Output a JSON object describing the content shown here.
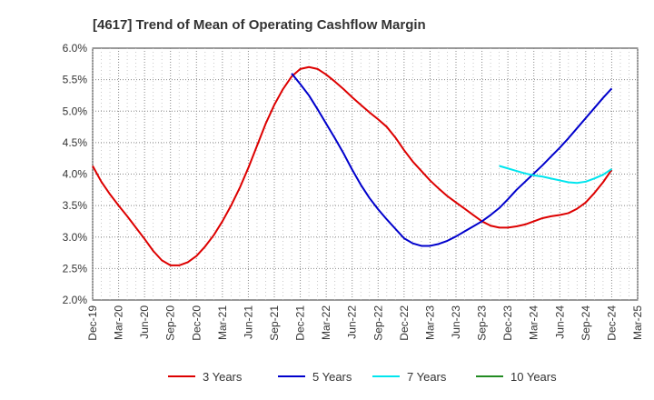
{
  "chart_data": {
    "type": "line",
    "title": "[4617]  Trend of Mean of Operating Cashflow Margin",
    "xlabel": "",
    "ylabel": "",
    "x_ticks": [
      "Dec-19",
      "Mar-20",
      "Jun-20",
      "Sep-20",
      "Dec-20",
      "Mar-21",
      "Jun-21",
      "Sep-21",
      "Dec-21",
      "Mar-22",
      "Jun-22",
      "Sep-22",
      "Dec-22",
      "Mar-23",
      "Jun-23",
      "Sep-23",
      "Dec-23",
      "Mar-24",
      "Jun-24",
      "Sep-24",
      "Dec-24",
      "Mar-25"
    ],
    "y_ticks": [
      "2.0%",
      "2.5%",
      "3.0%",
      "3.5%",
      "4.0%",
      "4.5%",
      "5.0%",
      "5.5%",
      "6.0%"
    ],
    "ylim": [
      2.0,
      6.0
    ],
    "grid": true,
    "legend_position": "bottom",
    "series": [
      {
        "name": "3 Years",
        "color": "#dd0000",
        "points": [
          [
            "Dec-19",
            4.13
          ],
          [
            "Jan-20",
            3.88
          ],
          [
            "Feb-20",
            3.68
          ],
          [
            "Mar-20",
            3.5
          ],
          [
            "Apr-20",
            3.33
          ],
          [
            "May-20",
            3.15
          ],
          [
            "Jun-20",
            2.97
          ],
          [
            "Jul-20",
            2.78
          ],
          [
            "Aug-20",
            2.63
          ],
          [
            "Sep-20",
            2.55
          ],
          [
            "Oct-20",
            2.55
          ],
          [
            "Nov-20",
            2.6
          ],
          [
            "Dec-20",
            2.7
          ],
          [
            "Jan-21",
            2.85
          ],
          [
            "Feb-21",
            3.03
          ],
          [
            "Mar-21",
            3.25
          ],
          [
            "Apr-21",
            3.5
          ],
          [
            "May-21",
            3.78
          ],
          [
            "Jun-21",
            4.1
          ],
          [
            "Jul-21",
            4.45
          ],
          [
            "Aug-21",
            4.8
          ],
          [
            "Sep-21",
            5.1
          ],
          [
            "Oct-21",
            5.35
          ],
          [
            "Nov-21",
            5.55
          ],
          [
            "Dec-21",
            5.67
          ],
          [
            "Jan-22",
            5.7
          ],
          [
            "Feb-22",
            5.67
          ],
          [
            "Mar-22",
            5.58
          ],
          [
            "Apr-22",
            5.47
          ],
          [
            "May-22",
            5.35
          ],
          [
            "Jun-22",
            5.22
          ],
          [
            "Jul-22",
            5.1
          ],
          [
            "Aug-22",
            4.98
          ],
          [
            "Sep-22",
            4.87
          ],
          [
            "Oct-22",
            4.75
          ],
          [
            "Nov-22",
            4.58
          ],
          [
            "Dec-22",
            4.38
          ],
          [
            "Jan-23",
            4.2
          ],
          [
            "Feb-23",
            4.05
          ],
          [
            "Mar-23",
            3.9
          ],
          [
            "Apr-23",
            3.77
          ],
          [
            "May-23",
            3.65
          ],
          [
            "Jun-23",
            3.55
          ],
          [
            "Jul-23",
            3.45
          ],
          [
            "Aug-23",
            3.35
          ],
          [
            "Sep-23",
            3.25
          ],
          [
            "Oct-23",
            3.18
          ],
          [
            "Nov-23",
            3.15
          ],
          [
            "Dec-23",
            3.15
          ],
          [
            "Jan-24",
            3.17
          ],
          [
            "Feb-24",
            3.2
          ],
          [
            "Mar-24",
            3.25
          ],
          [
            "Apr-24",
            3.3
          ],
          [
            "May-24",
            3.33
          ],
          [
            "Jun-24",
            3.35
          ],
          [
            "Jul-24",
            3.38
          ],
          [
            "Aug-24",
            3.45
          ],
          [
            "Sep-24",
            3.55
          ],
          [
            "Oct-24",
            3.7
          ],
          [
            "Nov-24",
            3.87
          ],
          [
            "Dec-24",
            4.07
          ]
        ]
      },
      {
        "name": "5 Years",
        "color": "#0000cc",
        "points": [
          [
            "Nov-21",
            5.6
          ],
          [
            "Dec-21",
            5.43
          ],
          [
            "Jan-22",
            5.25
          ],
          [
            "Feb-22",
            5.03
          ],
          [
            "Mar-22",
            4.8
          ],
          [
            "Apr-22",
            4.57
          ],
          [
            "May-22",
            4.33
          ],
          [
            "Jun-22",
            4.07
          ],
          [
            "Jul-22",
            3.83
          ],
          [
            "Aug-22",
            3.62
          ],
          [
            "Sep-22",
            3.44
          ],
          [
            "Oct-22",
            3.28
          ],
          [
            "Nov-22",
            3.13
          ],
          [
            "Dec-22",
            2.98
          ],
          [
            "Jan-23",
            2.9
          ],
          [
            "Feb-23",
            2.86
          ],
          [
            "Mar-23",
            2.86
          ],
          [
            "Apr-23",
            2.89
          ],
          [
            "May-23",
            2.94
          ],
          [
            "Jun-23",
            3.01
          ],
          [
            "Jul-23",
            3.09
          ],
          [
            "Aug-23",
            3.17
          ],
          [
            "Sep-23",
            3.25
          ],
          [
            "Oct-23",
            3.35
          ],
          [
            "Nov-23",
            3.46
          ],
          [
            "Dec-23",
            3.6
          ],
          [
            "Jan-24",
            3.75
          ],
          [
            "Feb-24",
            3.88
          ],
          [
            "Mar-24",
            4.01
          ],
          [
            "Apr-24",
            4.14
          ],
          [
            "May-24",
            4.28
          ],
          [
            "Jun-24",
            4.42
          ],
          [
            "Jul-24",
            4.57
          ],
          [
            "Aug-24",
            4.73
          ],
          [
            "Sep-24",
            4.89
          ],
          [
            "Oct-24",
            5.05
          ],
          [
            "Nov-24",
            5.21
          ],
          [
            "Dec-24",
            5.36
          ]
        ]
      },
      {
        "name": "7 Years",
        "color": "#00e5ee",
        "points": [
          [
            "Nov-23",
            4.13
          ],
          [
            "Dec-23",
            4.09
          ],
          [
            "Jan-24",
            4.05
          ],
          [
            "Feb-24",
            4.01
          ],
          [
            "Mar-24",
            3.98
          ],
          [
            "Apr-24",
            3.96
          ],
          [
            "May-24",
            3.93
          ],
          [
            "Jun-24",
            3.9
          ],
          [
            "Jul-24",
            3.87
          ],
          [
            "Aug-24",
            3.86
          ],
          [
            "Sep-24",
            3.88
          ],
          [
            "Oct-24",
            3.93
          ],
          [
            "Nov-24",
            3.99
          ],
          [
            "Dec-24",
            4.08
          ]
        ]
      },
      {
        "name": "10 Years",
        "color": "#228b22",
        "points": []
      }
    ]
  }
}
